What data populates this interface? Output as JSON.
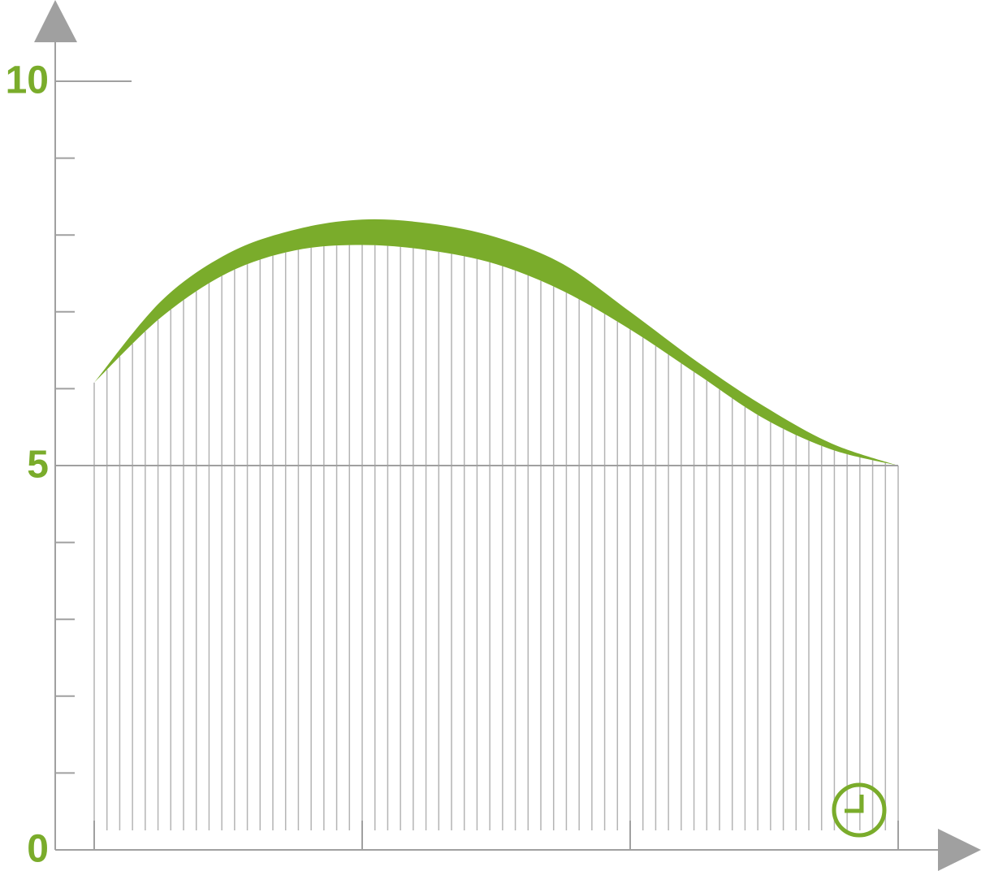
{
  "chart_data": {
    "type": "band",
    "x": [
      0,
      0.25,
      0.5,
      0.75,
      1,
      1.25,
      1.5,
      1.75,
      2,
      2.25,
      2.5,
      2.75,
      3
    ],
    "xlim": [
      0,
      3
    ],
    "band": {
      "upper": [
        6.08,
        7.14,
        7.76,
        8.07,
        8.2,
        8.15,
        7.97,
        7.62,
        7.0,
        6.35,
        5.77,
        5.29,
        5.0
      ],
      "lower": [
        6.08,
        6.93,
        7.51,
        7.8,
        7.87,
        7.8,
        7.62,
        7.27,
        6.77,
        6.19,
        5.61,
        5.21,
        5.0
      ]
    },
    "color": "#7aac2b",
    "ylim": [
      0,
      10
    ],
    "yticks": [
      0,
      5,
      10
    ],
    "yminor_ticks": [
      1,
      2,
      3,
      4,
      6,
      7,
      8,
      9
    ],
    "reference_line": 5
  }
}
